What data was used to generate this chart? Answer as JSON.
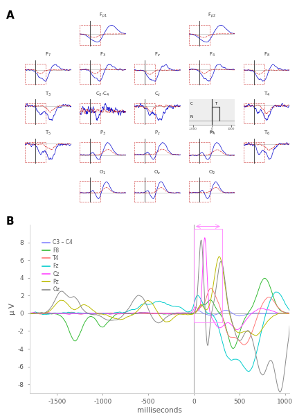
{
  "background_color": "#ffffff",
  "xlim_B": [
    -1800,
    1050
  ],
  "ylim_B": [
    -9,
    10
  ],
  "yticks_B": [
    -8,
    -6,
    -4,
    -2,
    0,
    2,
    4,
    6,
    8
  ],
  "xticks_B": [
    -1500,
    -1000,
    -500,
    0,
    500,
    1000
  ],
  "xlabel_B": "milliseconds",
  "ylabel_B": "μ V",
  "line_colors": {
    "C3-C4": "#8888ff",
    "F8": "#33bb33",
    "T4": "#ff7777",
    "Fz": "#00cccc",
    "Cz": "#ff44ff",
    "Pz": "#bbbb00",
    "Oz": "#888888"
  },
  "legend_labels": [
    "C3 – C4",
    "F8",
    "T4",
    "Fz",
    "Cz",
    "Pz",
    "Oz"
  ],
  "legend_colors": [
    "#8888ff",
    "#33bb33",
    "#ff7777",
    "#00cccc",
    "#ff44ff",
    "#bbbb00",
    "#888888"
  ]
}
